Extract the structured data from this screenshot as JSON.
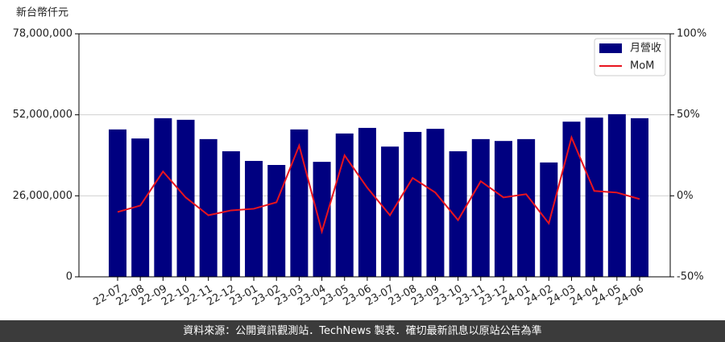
{
  "chart_data": {
    "type": "bar-line",
    "y_label": "新台幣仟元",
    "categories": [
      "22-07",
      "22-08",
      "22-09",
      "22-10",
      "22-11",
      "22-12",
      "23-01",
      "23-02",
      "23-03",
      "23-04",
      "23-05",
      "23-06",
      "23-07",
      "23-08",
      "23-09",
      "23-10",
      "23-11",
      "23-12",
      "24-01",
      "24-02",
      "24-03",
      "24-04",
      "24-05",
      "24-06"
    ],
    "series": [
      {
        "name": "月營收",
        "color": "#000080",
        "type": "bar",
        "values": [
          47300000,
          44400000,
          50900000,
          50400000,
          44200000,
          40300000,
          37200000,
          35900000,
          47300000,
          36900000,
          46000000,
          47800000,
          41800000,
          46500000,
          47500000,
          40300000,
          44200000,
          43600000,
          44200000,
          36700000,
          49800000,
          51100000,
          52200000,
          50900000
        ]
      },
      {
        "name": "MoM",
        "color": "#e8141e",
        "type": "line",
        "axis": "y2",
        "values": [
          -10,
          -6,
          15,
          -1,
          -12,
          -9,
          -8,
          -4,
          31,
          -22,
          25,
          5,
          -12,
          11,
          2,
          -15,
          9,
          -1,
          1,
          -17,
          36,
          3,
          2,
          -2
        ]
      }
    ],
    "ylim": [
      0,
      78000000
    ],
    "yticks": [
      0,
      {
        "value": 26000000,
        "label": "26,000,000"
      },
      {
        "value": 52000000,
        "label": "52,000,000"
      },
      {
        "value": 78000000,
        "label": "78,000,000"
      }
    ],
    "y2lim": [
      -50,
      100
    ],
    "y2ticks": [
      {
        "value": -50,
        "label": "-50%"
      },
      {
        "value": 0,
        "label": "0%"
      },
      {
        "value": 50,
        "label": "50%"
      },
      {
        "value": 100,
        "label": "100%"
      }
    ],
    "grid": true,
    "legend": "upper right",
    "source": "資料來源：公開資訊觀測站．TechNews 製表．確切最新訊息以原站公告為準"
  }
}
